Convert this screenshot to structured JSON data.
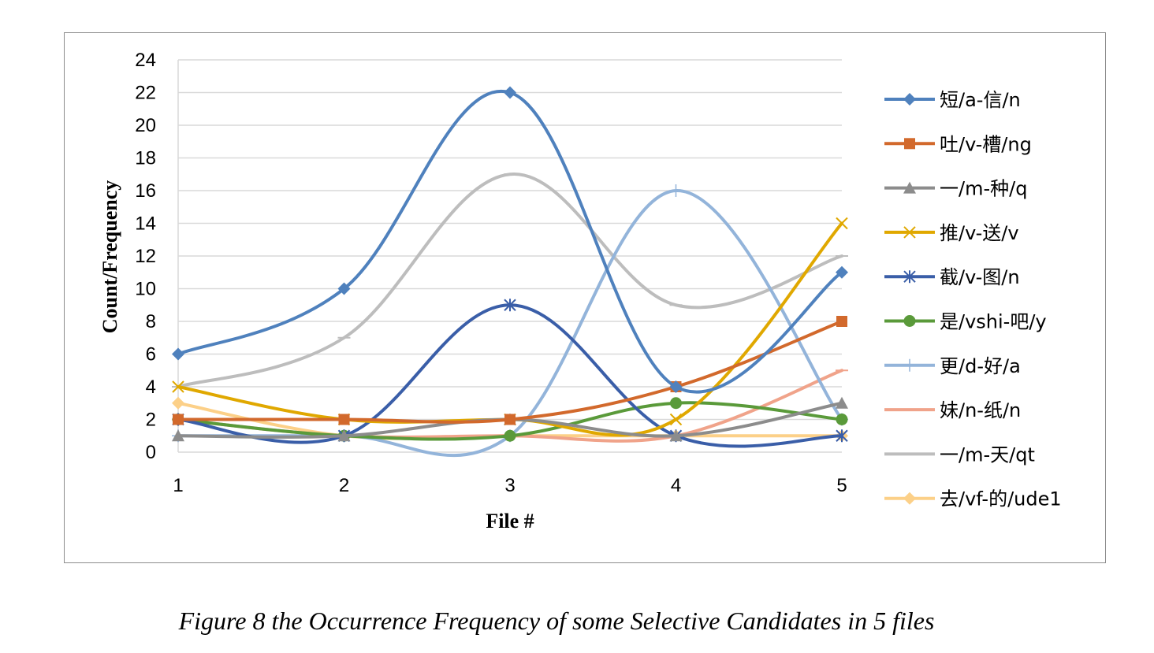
{
  "caption": "Figure 8 the Occurrence Frequency of some Selective Candidates in 5 files",
  "chart_data": {
    "type": "line",
    "smooth": true,
    "xlabel": "File #",
    "ylabel": "Count/Frequency",
    "x": [
      1,
      2,
      3,
      4,
      5
    ],
    "ylim": [
      0,
      24
    ],
    "yticks": [
      0,
      2,
      4,
      6,
      8,
      10,
      12,
      14,
      16,
      18,
      20,
      22,
      24
    ],
    "grid": "horizontal",
    "legend": "right",
    "series": [
      {
        "name": "短/a-信/n",
        "values": [
          6,
          10,
          22,
          4,
          11
        ],
        "color": "#4f81bd",
        "marker": "diamond"
      },
      {
        "name": "吐/v-槽/ng",
        "values": [
          2,
          2,
          2,
          4,
          8
        ],
        "color": "#d2692c",
        "marker": "square"
      },
      {
        "name": "一/m-种/q",
        "values": [
          1,
          1,
          2,
          1,
          3
        ],
        "color": "#8c8c8c",
        "marker": "triangle"
      },
      {
        "name": "推/v-送/v",
        "values": [
          4,
          2,
          2,
          2,
          14
        ],
        "color": "#e0a800",
        "marker": "x"
      },
      {
        "name": "截/v-图/n",
        "values": [
          2,
          1,
          9,
          1,
          1
        ],
        "color": "#3a5ea8",
        "marker": "star"
      },
      {
        "name": "是/vshi-吧/y",
        "values": [
          2,
          1,
          1,
          3,
          2
        ],
        "color": "#5a9a3a",
        "marker": "circle"
      },
      {
        "name": "更/d-好/a",
        "values": [
          1,
          1,
          1,
          16,
          2
        ],
        "color": "#93b4da",
        "marker": "plus"
      },
      {
        "name": "妹/n-纸/n",
        "values": [
          2,
          1,
          1,
          1,
          5
        ],
        "color": "#f0a38a",
        "marker": "dash"
      },
      {
        "name": "一/m-天/qt",
        "values": [
          4,
          7,
          17,
          9,
          12
        ],
        "color": "#bdbdbd",
        "marker": "dash"
      },
      {
        "name": "去/vf-的/ude1",
        "values": [
          3,
          1,
          1,
          1,
          1
        ],
        "color": "#fcd088",
        "marker": "diamond"
      }
    ]
  }
}
